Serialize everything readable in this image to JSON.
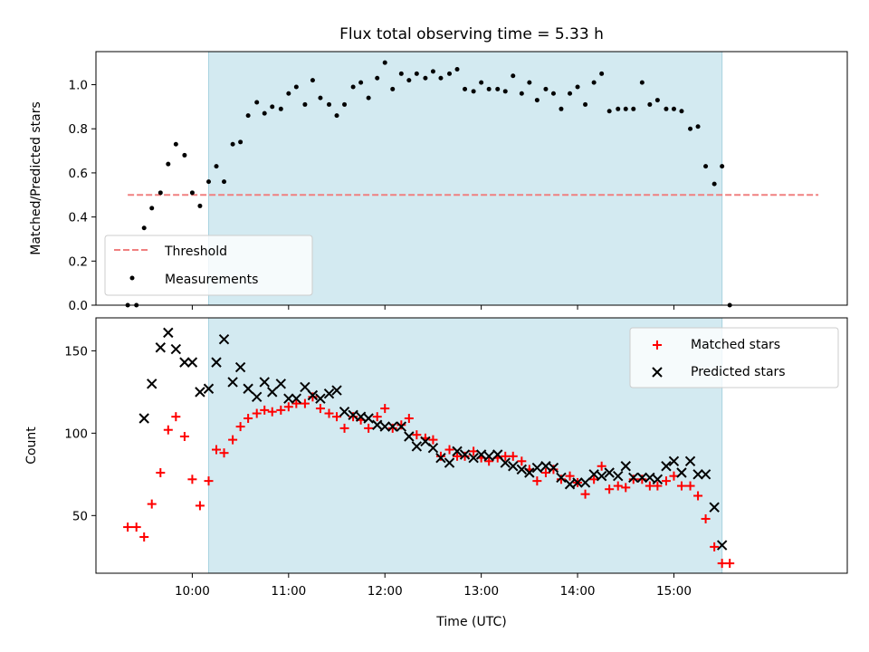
{
  "chart_data": [
    {
      "type": "scatter",
      "title": "Flux total observing time = 5.33 h",
      "xlabel": "",
      "ylabel": "Matched/Predicted stars",
      "xlim": [
        9.0,
        16.8
      ],
      "ylim": [
        0.0,
        1.15
      ],
      "yticks": [
        "0.0",
        "0.2",
        "0.4",
        "0.6",
        "0.8",
        "1.0"
      ],
      "shaded_region_hours": [
        10.17,
        15.5
      ],
      "shaded_color": "#d3eaf1",
      "threshold": {
        "name": "Threshold",
        "value": 0.5,
        "x_range": [
          9.33,
          16.5
        ],
        "color": "#f08080"
      },
      "series": [
        {
          "name": "Measurements",
          "marker": "dot",
          "color": "#000000",
          "x": [
            9.33,
            9.42,
            9.5,
            9.58,
            9.67,
            9.75,
            9.83,
            9.92,
            10.0,
            10.08,
            10.17,
            10.25,
            10.33,
            10.42,
            10.5,
            10.58,
            10.67,
            10.75,
            10.83,
            10.92,
            11.0,
            11.08,
            11.17,
            11.25,
            11.33,
            11.42,
            11.5,
            11.58,
            11.67,
            11.75,
            11.83,
            11.92,
            12.0,
            12.08,
            12.17,
            12.25,
            12.33,
            12.42,
            12.5,
            12.58,
            12.67,
            12.75,
            12.83,
            12.92,
            13.0,
            13.08,
            13.17,
            13.25,
            13.33,
            13.42,
            13.5,
            13.58,
            13.67,
            13.75,
            13.83,
            13.92,
            14.0,
            14.08,
            14.17,
            14.25,
            14.33,
            14.42,
            14.5,
            14.58,
            14.67,
            14.75,
            14.83,
            14.92,
            15.0,
            15.08,
            15.17,
            15.25,
            15.33,
            15.42,
            15.5,
            15.58
          ],
          "y": [
            0.0,
            0.0,
            0.35,
            0.44,
            0.51,
            0.64,
            0.73,
            0.68,
            0.51,
            0.45,
            0.56,
            0.63,
            0.56,
            0.73,
            0.74,
            0.86,
            0.92,
            0.87,
            0.9,
            0.89,
            0.96,
            0.99,
            0.91,
            1.02,
            0.94,
            0.91,
            0.86,
            0.91,
            0.99,
            1.01,
            0.94,
            1.03,
            1.1,
            0.98,
            1.05,
            1.02,
            1.05,
            1.03,
            1.06,
            1.03,
            1.05,
            1.07,
            0.98,
            0.97,
            1.01,
            0.98,
            0.98,
            0.97,
            1.04,
            0.96,
            1.01,
            0.93,
            0.98,
            0.96,
            0.89,
            0.96,
            0.99,
            0.91,
            1.01,
            1.05,
            0.88,
            0.89,
            0.89,
            0.89,
            1.01,
            0.91,
            0.93,
            0.89,
            0.89,
            0.88,
            0.8,
            0.81,
            0.63,
            0.55,
            0.63,
            0.0
          ]
        }
      ],
      "legend": {
        "position": "lower-left",
        "entries": [
          "Threshold",
          "Measurements"
        ]
      }
    },
    {
      "type": "scatter",
      "title": "",
      "xlabel": "Time (UTC)",
      "ylabel": "Count",
      "xlim": [
        9.0,
        16.8
      ],
      "ylim": [
        15,
        170
      ],
      "yticks": [
        "50",
        "100",
        "150"
      ],
      "xticks": [
        "10:00",
        "11:00",
        "12:00",
        "13:00",
        "14:00",
        "15:00"
      ],
      "shaded_region_hours": [
        10.17,
        15.5
      ],
      "series": [
        {
          "name": "Matched stars",
          "marker": "plus",
          "color": "#ff0000",
          "x": [
            9.33,
            9.42,
            9.5,
            9.58,
            9.67,
            9.75,
            9.83,
            9.92,
            10.0,
            10.08,
            10.17,
            10.25,
            10.33,
            10.42,
            10.5,
            10.58,
            10.67,
            10.75,
            10.83,
            10.92,
            11.0,
            11.08,
            11.17,
            11.25,
            11.33,
            11.42,
            11.5,
            11.58,
            11.67,
            11.75,
            11.83,
            11.92,
            12.0,
            12.08,
            12.17,
            12.25,
            12.33,
            12.42,
            12.5,
            12.58,
            12.67,
            12.75,
            12.83,
            12.92,
            13.0,
            13.08,
            13.17,
            13.25,
            13.33,
            13.42,
            13.5,
            13.58,
            13.67,
            13.75,
            13.83,
            13.92,
            14.0,
            14.08,
            14.17,
            14.25,
            14.33,
            14.42,
            14.5,
            14.58,
            14.67,
            14.75,
            14.83,
            14.92,
            15.0,
            15.08,
            15.17,
            15.25,
            15.33,
            15.42,
            15.5,
            15.58
          ],
          "y": [
            43,
            43,
            37,
            57,
            76,
            102,
            110,
            98,
            72,
            56,
            71,
            90,
            88,
            96,
            104,
            109,
            112,
            114,
            113,
            114,
            116,
            118,
            118,
            122,
            115,
            112,
            110,
            103,
            110,
            108,
            103,
            110,
            115,
            103,
            105,
            109,
            99,
            97,
            96,
            86,
            90,
            86,
            86,
            89,
            85,
            83,
            85,
            86,
            86,
            83,
            78,
            71,
            76,
            78,
            72,
            74,
            70,
            63,
            72,
            80,
            66,
            68,
            67,
            72,
            72,
            68,
            68,
            71,
            74,
            68,
            68,
            62,
            48,
            31,
            21,
            21
          ]
        },
        {
          "name": "Predicted stars",
          "marker": "cross",
          "color": "#000000",
          "x": [
            9.5,
            9.58,
            9.67,
            9.75,
            9.83,
            9.92,
            10.0,
            10.08,
            10.17,
            10.25,
            10.33,
            10.42,
            10.5,
            10.58,
            10.67,
            10.75,
            10.83,
            10.92,
            11.0,
            11.08,
            11.17,
            11.25,
            11.33,
            11.42,
            11.5,
            11.58,
            11.67,
            11.75,
            11.83,
            11.92,
            12.0,
            12.08,
            12.17,
            12.25,
            12.33,
            12.42,
            12.5,
            12.58,
            12.67,
            12.75,
            12.83,
            12.92,
            13.0,
            13.08,
            13.17,
            13.25,
            13.33,
            13.42,
            13.5,
            13.58,
            13.67,
            13.75,
            13.83,
            13.92,
            14.0,
            14.08,
            14.17,
            14.25,
            14.33,
            14.42,
            14.5,
            14.58,
            14.67,
            14.75,
            14.83,
            14.92,
            15.0,
            15.08,
            15.17,
            15.25,
            15.33,
            15.42,
            15.5
          ],
          "y": [
            109,
            130,
            152,
            161,
            151,
            143,
            143,
            125,
            127,
            143,
            157,
            131,
            140,
            127,
            122,
            131,
            125,
            130,
            121,
            121,
            128,
            123,
            121,
            124,
            126,
            113,
            111,
            110,
            109,
            105,
            104,
            104,
            104,
            98,
            92,
            95,
            91,
            85,
            82,
            89,
            87,
            85,
            87,
            86,
            87,
            82,
            80,
            78,
            76,
            79,
            80,
            79,
            73,
            69,
            70,
            70,
            75,
            74,
            76,
            74,
            80,
            73,
            73,
            73,
            72,
            80,
            83,
            76,
            83,
            75,
            75,
            55,
            32
          ]
        }
      ],
      "legend": {
        "position": "top-right",
        "entries": [
          "Matched stars",
          "Predicted stars"
        ]
      }
    }
  ]
}
